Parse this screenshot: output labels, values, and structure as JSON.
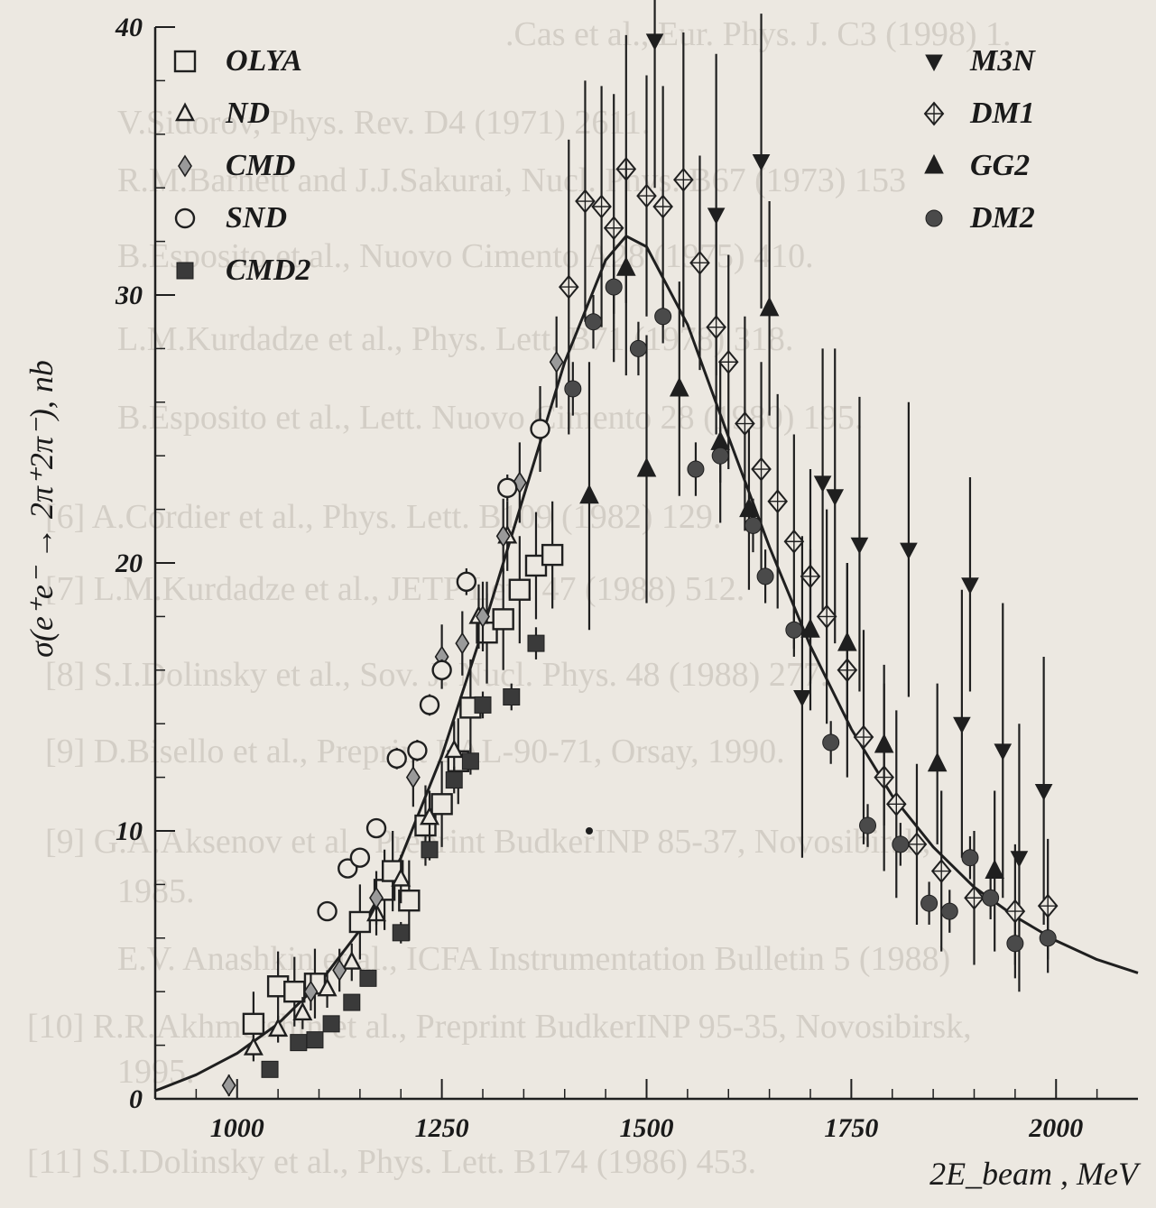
{
  "background_ghost_text": [
    ".Cas  et al., Eur. Phys. J. C3 (1998) 1.",
    "V.Sidorov, Phys. Rev. D4 (1971) 2611.",
    "R.M.Barnett and J.J.Sakurai, Nucl. Phys. B67 (1973) 153",
    "B.Esposito et al., Nuovo Cimento A28 (1975) 410.",
    "L.M.Kurdadze et al., Phys. Lett. B71 (1978) 318.",
    "B.Esposito et al., Lett. Nuovo Cimento 28 (1980) 195.",
    "[6]  A.Cordier et al., Phys. Lett. B109 (1982) 129.",
    "[7]  L.M.Kurdadze et al., JETP Lett. 47 (1988) 512.",
    "[8]  S.I.Dolinsky et al., Sov. J. Nucl. Phys. 48 (1988) 277.",
    "[9]  D.Bisello et al., Preprint LAL-90-71, Orsay, 1990.",
    "[9]  G.A.Aksenov et al., Preprint BudkerINP 85-37, Novosibirsk,",
    "1985.",
    "E.V. Anashkin et al., ICFA Instrumentation Bulletin 5 (1988)",
    "[10]  R.R.Akhmetshin et al., Preprint BudkerINP 95-35, Novosibirsk,",
    "1995.",
    "[11]  S.I.Dolinsky et al., Phys. Lett. B174 (1986) 453."
  ],
  "chart_data": {
    "type": "scatter",
    "title": "",
    "xlabel": "2E_beam , MeV",
    "ylabel": "σ(e⁺e⁻ → 2π⁺2π⁻), nb",
    "xlim": [
      900,
      2100
    ],
    "ylim": [
      0,
      40
    ],
    "x_ticks": [
      1000,
      1250,
      1500,
      1750,
      2000
    ],
    "y_ticks": [
      0,
      10,
      20,
      30,
      40
    ],
    "grid": false,
    "legend_position": "top-left and top-right",
    "legend_left": [
      {
        "name": "OLYA",
        "marker": "open-square"
      },
      {
        "name": "ND",
        "marker": "open-triangle"
      },
      {
        "name": "CMD",
        "marker": "open-diamond"
      },
      {
        "name": "SND",
        "marker": "open-circle"
      },
      {
        "name": "CMD2",
        "marker": "filled-square"
      }
    ],
    "legend_right": [
      {
        "name": "M3N",
        "marker": "filled-down-triangle"
      },
      {
        "name": "DM1",
        "marker": "open-diamond-cross"
      },
      {
        "name": "GG2",
        "marker": "filled-triangle"
      },
      {
        "name": "DM2",
        "marker": "filled-circle"
      }
    ],
    "series": [
      {
        "name": "OLYA",
        "marker": "open-square",
        "points": [
          {
            "x": 1020,
            "y": 2.8,
            "err": 1.2
          },
          {
            "x": 1050,
            "y": 4.2,
            "err": 1.3
          },
          {
            "x": 1070,
            "y": 4.0,
            "err": 1.3
          },
          {
            "x": 1095,
            "y": 4.3,
            "err": 1.3
          },
          {
            "x": 1150,
            "y": 6.6,
            "err": 1.4
          },
          {
            "x": 1180,
            "y": 7.8,
            "err": 1.5
          },
          {
            "x": 1190,
            "y": 8.5,
            "err": 1.5
          },
          {
            "x": 1210,
            "y": 7.4,
            "err": 1.5
          },
          {
            "x": 1230,
            "y": 10.2,
            "err": 1.5
          },
          {
            "x": 1250,
            "y": 11.0,
            "err": 1.6
          },
          {
            "x": 1270,
            "y": 12.6,
            "err": 1.6
          },
          {
            "x": 1285,
            "y": 14.6,
            "err": 1.8
          },
          {
            "x": 1305,
            "y": 17.4,
            "err": 1.9
          },
          {
            "x": 1325,
            "y": 17.9,
            "err": 1.9
          },
          {
            "x": 1345,
            "y": 19.0,
            "err": 2.0
          },
          {
            "x": 1365,
            "y": 19.9,
            "err": 2.0
          },
          {
            "x": 1385,
            "y": 20.3,
            "err": 2.0
          }
        ]
      },
      {
        "name": "ND",
        "marker": "open-triangle",
        "points": [
          {
            "x": 1020,
            "y": 1.9,
            "err": 0.5
          },
          {
            "x": 1050,
            "y": 2.6,
            "err": 0.5
          },
          {
            "x": 1080,
            "y": 3.2,
            "err": 0.6
          },
          {
            "x": 1110,
            "y": 4.1,
            "err": 0.7
          },
          {
            "x": 1140,
            "y": 5.1,
            "err": 0.7
          },
          {
            "x": 1170,
            "y": 6.9,
            "err": 0.8
          },
          {
            "x": 1200,
            "y": 8.2,
            "err": 0.9
          },
          {
            "x": 1235,
            "y": 10.5,
            "err": 1.0
          },
          {
            "x": 1265,
            "y": 13.0,
            "err": 1.1
          },
          {
            "x": 1295,
            "y": 18.0,
            "err": 1.2
          },
          {
            "x": 1330,
            "y": 21.0,
            "err": 1.3
          }
        ]
      },
      {
        "name": "CMD",
        "marker": "open-diamond",
        "points": [
          {
            "x": 990,
            "y": 0.5,
            "err": 0.4
          },
          {
            "x": 1090,
            "y": 4.0,
            "err": 0.7
          },
          {
            "x": 1125,
            "y": 4.8,
            "err": 0.8
          },
          {
            "x": 1170,
            "y": 7.5,
            "err": 1.0
          },
          {
            "x": 1215,
            "y": 12.0,
            "err": 1.1
          },
          {
            "x": 1250,
            "y": 16.5,
            "err": 1.2
          },
          {
            "x": 1275,
            "y": 17.0,
            "err": 1.2
          },
          {
            "x": 1300,
            "y": 18.0,
            "err": 1.3
          },
          {
            "x": 1325,
            "y": 21.0,
            "err": 1.4
          },
          {
            "x": 1345,
            "y": 23.0,
            "err": 1.5
          },
          {
            "x": 1370,
            "y": 25.0,
            "err": 1.6
          },
          {
            "x": 1390,
            "y": 27.5,
            "err": 1.7
          }
        ]
      },
      {
        "name": "SND",
        "marker": "open-circle",
        "points": [
          {
            "x": 1110,
            "y": 7.0,
            "err": 0.3
          },
          {
            "x": 1135,
            "y": 8.6,
            "err": 0.3
          },
          {
            "x": 1150,
            "y": 9.0,
            "err": 0.3
          },
          {
            "x": 1170,
            "y": 10.1,
            "err": 0.3
          },
          {
            "x": 1195,
            "y": 12.7,
            "err": 0.4
          },
          {
            "x": 1220,
            "y": 13.0,
            "err": 0.4
          },
          {
            "x": 1235,
            "y": 14.7,
            "err": 0.4
          },
          {
            "x": 1250,
            "y": 16.0,
            "err": 0.4
          },
          {
            "x": 1280,
            "y": 19.3,
            "err": 0.5
          },
          {
            "x": 1330,
            "y": 22.8,
            "err": 0.5
          },
          {
            "x": 1370,
            "y": 25.0,
            "err": 0.6
          }
        ]
      },
      {
        "name": "CMD2",
        "marker": "filled-square",
        "points": [
          {
            "x": 1040,
            "y": 1.1,
            "err": 0.2
          },
          {
            "x": 1075,
            "y": 2.1,
            "err": 0.2
          },
          {
            "x": 1095,
            "y": 2.2,
            "err": 0.2
          },
          {
            "x": 1115,
            "y": 2.8,
            "err": 0.3
          },
          {
            "x": 1140,
            "y": 3.6,
            "err": 0.3
          },
          {
            "x": 1160,
            "y": 4.5,
            "err": 0.3
          },
          {
            "x": 1200,
            "y": 6.2,
            "err": 0.4
          },
          {
            "x": 1235,
            "y": 9.3,
            "err": 0.4
          },
          {
            "x": 1265,
            "y": 11.9,
            "err": 0.5
          },
          {
            "x": 1285,
            "y": 12.6,
            "err": 0.5
          },
          {
            "x": 1300,
            "y": 14.7,
            "err": 0.5
          },
          {
            "x": 1335,
            "y": 15.0,
            "err": 0.5
          },
          {
            "x": 1365,
            "y": 17.0,
            "err": 0.6
          }
        ]
      },
      {
        "name": "M3N",
        "marker": "filled-down-triangle",
        "points": [
          {
            "x": 1510,
            "y": 39.5,
            "err": 5.5
          },
          {
            "x": 1585,
            "y": 33.0,
            "err": 6.0
          },
          {
            "x": 1640,
            "y": 35.0,
            "err": 5.5
          },
          {
            "x": 1690,
            "y": 15.0,
            "err": 6.0
          },
          {
            "x": 1715,
            "y": 23.0,
            "err": 5.0
          },
          {
            "x": 1730,
            "y": 22.5,
            "err": 5.5
          },
          {
            "x": 1760,
            "y": 20.7,
            "err": 5.5
          },
          {
            "x": 1820,
            "y": 20.5,
            "err": 5.5
          },
          {
            "x": 1885,
            "y": 14.0,
            "err": 5.0
          },
          {
            "x": 1895,
            "y": 19.2,
            "err": 4.0
          },
          {
            "x": 1935,
            "y": 13.0,
            "err": 5.5
          },
          {
            "x": 1955,
            "y": 9.0,
            "err": 5.0
          },
          {
            "x": 1985,
            "y": 11.5,
            "err": 5.0
          }
        ]
      },
      {
        "name": "DM1",
        "marker": "open-diamond-cross",
        "points": [
          {
            "x": 1405,
            "y": 30.3,
            "err": 5.5
          },
          {
            "x": 1425,
            "y": 33.5,
            "err": 4.5
          },
          {
            "x": 1445,
            "y": 33.3,
            "err": 4.5
          },
          {
            "x": 1460,
            "y": 32.5,
            "err": 5.0
          },
          {
            "x": 1475,
            "y": 34.7,
            "err": 5.0
          },
          {
            "x": 1500,
            "y": 33.7,
            "err": 4.5
          },
          {
            "x": 1520,
            "y": 33.3,
            "err": 4.5
          },
          {
            "x": 1545,
            "y": 34.3,
            "err": 5.5
          },
          {
            "x": 1565,
            "y": 31.2,
            "err": 4.0
          },
          {
            "x": 1585,
            "y": 28.8,
            "err": 4.0
          },
          {
            "x": 1600,
            "y": 27.5,
            "err": 4.0
          },
          {
            "x": 1620,
            "y": 25.2,
            "err": 4.0
          },
          {
            "x": 1640,
            "y": 23.5,
            "err": 4.0
          },
          {
            "x": 1660,
            "y": 22.3,
            "err": 4.0
          },
          {
            "x": 1680,
            "y": 20.8,
            "err": 4.0
          },
          {
            "x": 1700,
            "y": 19.5,
            "err": 4.0
          },
          {
            "x": 1720,
            "y": 18.0,
            "err": 4.0
          },
          {
            "x": 1745,
            "y": 16.0,
            "err": 4.0
          },
          {
            "x": 1765,
            "y": 13.5,
            "err": 4.0
          },
          {
            "x": 1790,
            "y": 12.0,
            "err": 3.5
          },
          {
            "x": 1805,
            "y": 11.0,
            "err": 3.5
          },
          {
            "x": 1830,
            "y": 9.5,
            "err": 3.0
          },
          {
            "x": 1860,
            "y": 8.5,
            "err": 3.0
          },
          {
            "x": 1900,
            "y": 7.5,
            "err": 2.5
          },
          {
            "x": 1950,
            "y": 7.0,
            "err": 2.5
          },
          {
            "x": 1990,
            "y": 7.2,
            "err": 2.5
          }
        ]
      },
      {
        "name": "GG2",
        "marker": "filled-triangle",
        "points": [
          {
            "x": 1430,
            "y": 22.5,
            "err": 5.0
          },
          {
            "x": 1475,
            "y": 31.0,
            "err": 4.0
          },
          {
            "x": 1500,
            "y": 23.5,
            "err": 5.0
          },
          {
            "x": 1540,
            "y": 26.5,
            "err": 4.0
          },
          {
            "x": 1590,
            "y": 24.5,
            "err": 3.0
          },
          {
            "x": 1625,
            "y": 22.0,
            "err": 3.0
          },
          {
            "x": 1650,
            "y": 29.5,
            "err": 4.0
          },
          {
            "x": 1700,
            "y": 17.5,
            "err": 3.0
          },
          {
            "x": 1745,
            "y": 17.0,
            "err": 3.0
          },
          {
            "x": 1790,
            "y": 13.2,
            "err": 3.0
          },
          {
            "x": 1855,
            "y": 12.5,
            "err": 3.0
          },
          {
            "x": 1925,
            "y": 8.5,
            "err": 3.0
          }
        ]
      },
      {
        "name": "DM2",
        "marker": "filled-circle",
        "points": [
          {
            "x": 1410,
            "y": 26.5,
            "err": 1.0
          },
          {
            "x": 1435,
            "y": 29.0,
            "err": 1.0
          },
          {
            "x": 1460,
            "y": 30.3,
            "err": 1.0
          },
          {
            "x": 1490,
            "y": 28.0,
            "err": 1.0
          },
          {
            "x": 1520,
            "y": 29.2,
            "err": 1.0
          },
          {
            "x": 1560,
            "y": 23.5,
            "err": 1.0
          },
          {
            "x": 1590,
            "y": 24.0,
            "err": 1.0
          },
          {
            "x": 1630,
            "y": 21.4,
            "err": 1.0
          },
          {
            "x": 1645,
            "y": 19.5,
            "err": 1.0
          },
          {
            "x": 1680,
            "y": 17.5,
            "err": 1.0
          },
          {
            "x": 1725,
            "y": 13.3,
            "err": 0.8
          },
          {
            "x": 1770,
            "y": 10.2,
            "err": 0.8
          },
          {
            "x": 1810,
            "y": 9.5,
            "err": 0.8
          },
          {
            "x": 1845,
            "y": 7.3,
            "err": 0.8
          },
          {
            "x": 1870,
            "y": 7.0,
            "err": 0.8
          },
          {
            "x": 1895,
            "y": 9.0,
            "err": 0.8
          },
          {
            "x": 1920,
            "y": 7.5,
            "err": 0.8
          },
          {
            "x": 1950,
            "y": 5.8,
            "err": 0.8
          },
          {
            "x": 1990,
            "y": 6.0,
            "err": 0.8
          }
        ]
      }
    ],
    "fit_curve": {
      "name": "",
      "x": [
        900,
        950,
        1000,
        1050,
        1100,
        1150,
        1200,
        1250,
        1300,
        1350,
        1400,
        1450,
        1475,
        1500,
        1550,
        1600,
        1650,
        1700,
        1750,
        1800,
        1850,
        1900,
        1950,
        2000,
        2050,
        2100
      ],
      "y": [
        0.3,
        0.9,
        1.7,
        2.8,
        4.3,
        6.3,
        9.0,
        12.8,
        17.5,
        22.5,
        27.5,
        31.3,
        32.2,
        31.8,
        28.9,
        24.7,
        20.6,
        16.9,
        13.8,
        11.3,
        9.4,
        7.9,
        6.8,
        5.9,
        5.2,
        4.7
      ]
    }
  }
}
